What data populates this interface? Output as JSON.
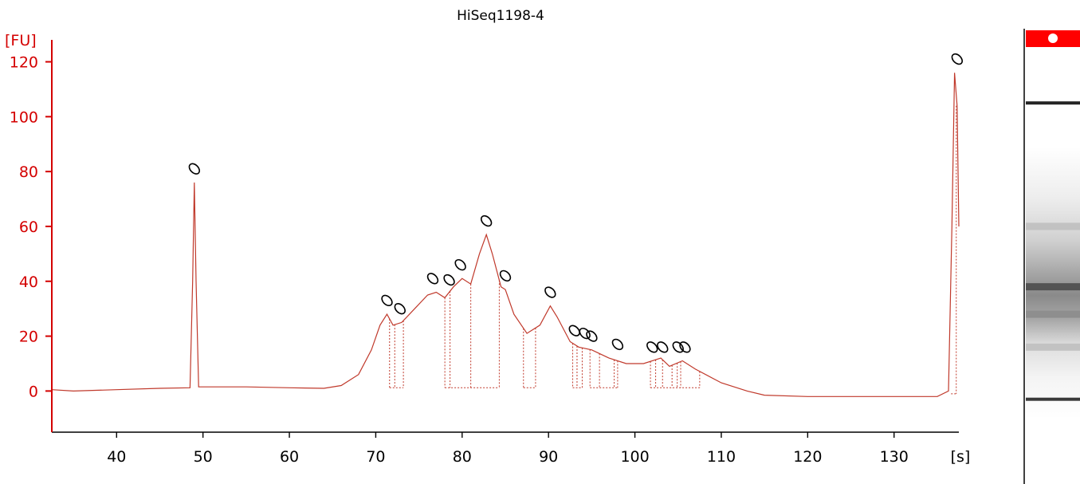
{
  "chart_data": {
    "type": "line",
    "title": "HiSeq1198-4",
    "ylabel": "[FU]",
    "xlabel": "[s]",
    "xlim": [
      32.5,
      137.5
    ],
    "ylim": [
      -15,
      128
    ],
    "x_ticks": [
      40,
      50,
      60,
      70,
      80,
      90,
      100,
      110,
      120,
      130
    ],
    "y_ticks": [
      0,
      20,
      40,
      60,
      80,
      100,
      120
    ],
    "grid": false,
    "colors": {
      "trace": "#c0392b",
      "axis": "#d40000",
      "gel_marker": "#ff0000"
    },
    "series": [
      {
        "values": [
          [
            32.5,
            0.5
          ],
          [
            35,
            0
          ],
          [
            40,
            0.5
          ],
          [
            45,
            1
          ],
          [
            48.5,
            1.2
          ],
          [
            48.8,
            40
          ],
          [
            49.0,
            76
          ],
          [
            49.2,
            40
          ],
          [
            49.5,
            1.5
          ],
          [
            55,
            1.5
          ],
          [
            60,
            1.2
          ],
          [
            64,
            1
          ],
          [
            66,
            2
          ],
          [
            68,
            6
          ],
          [
            69.5,
            15
          ],
          [
            70.5,
            24
          ],
          [
            71.3,
            28
          ],
          [
            72.0,
            24
          ],
          [
            73.0,
            25
          ],
          [
            74.5,
            30
          ],
          [
            76.0,
            35
          ],
          [
            77.0,
            36
          ],
          [
            78.0,
            34
          ],
          [
            79.0,
            38
          ],
          [
            80.0,
            41
          ],
          [
            81.0,
            39
          ],
          [
            82.0,
            50
          ],
          [
            82.8,
            57
          ],
          [
            83.5,
            50
          ],
          [
            84.5,
            38
          ],
          [
            85.0,
            37
          ],
          [
            86.0,
            28
          ],
          [
            87.5,
            21
          ],
          [
            89.0,
            24
          ],
          [
            90.2,
            31
          ],
          [
            91.0,
            27
          ],
          [
            92.5,
            18
          ],
          [
            93.5,
            16
          ],
          [
            95.0,
            15
          ],
          [
            97.0,
            12
          ],
          [
            99.0,
            10
          ],
          [
            101.0,
            10
          ],
          [
            103.0,
            12
          ],
          [
            104.0,
            9
          ],
          [
            105.5,
            11
          ],
          [
            107.0,
            8
          ],
          [
            110.0,
            3
          ],
          [
            113.0,
            0
          ],
          [
            115.0,
            -1.5
          ],
          [
            120.0,
            -2
          ],
          [
            125.0,
            -2
          ],
          [
            130.0,
            -2
          ],
          [
            135.0,
            -2
          ],
          [
            136.3,
            0
          ],
          [
            136.7,
            60
          ],
          [
            137.0,
            116
          ],
          [
            137.3,
            104
          ],
          [
            137.5,
            60
          ]
        ]
      }
    ],
    "peak_baselines": [
      [
        71.6,
        72.2,
        73.2
      ],
      [
        78.0,
        78.6,
        81.0,
        84.3
      ],
      [
        87.1,
        88.5
      ],
      [
        92.8,
        93.3,
        93.9
      ],
      [
        94.8,
        95.9,
        97.6,
        98.0
      ],
      [
        101.8,
        102.4,
        103.2,
        104.3,
        104.9,
        105.3,
        107.5
      ]
    ],
    "peak_markers": [
      [
        49.0,
        81
      ],
      [
        71.3,
        33
      ],
      [
        72.8,
        30
      ],
      [
        76.6,
        41
      ],
      [
        78.5,
        40.5
      ],
      [
        79.8,
        46
      ],
      [
        82.8,
        62
      ],
      [
        85.0,
        42
      ],
      [
        90.2,
        36
      ],
      [
        93.0,
        22
      ],
      [
        94.2,
        21
      ],
      [
        95.0,
        20
      ],
      [
        98.0,
        17
      ],
      [
        102.0,
        16
      ],
      [
        103.2,
        16
      ],
      [
        105.0,
        16
      ],
      [
        105.8,
        16
      ],
      [
        137.3,
        121
      ]
    ],
    "gel_lane": {
      "bands": [
        {
          "y": 105,
          "intensity": 0.95
        },
        {
          "y": 38,
          "intensity": 0.7
        },
        {
          "y": 28,
          "intensity": 0.45
        },
        {
          "y": 60,
          "intensity": 0.25
        },
        {
          "y": 16,
          "intensity": 0.25
        },
        {
          "y": -3,
          "intensity": 0.85
        }
      ]
    }
  }
}
